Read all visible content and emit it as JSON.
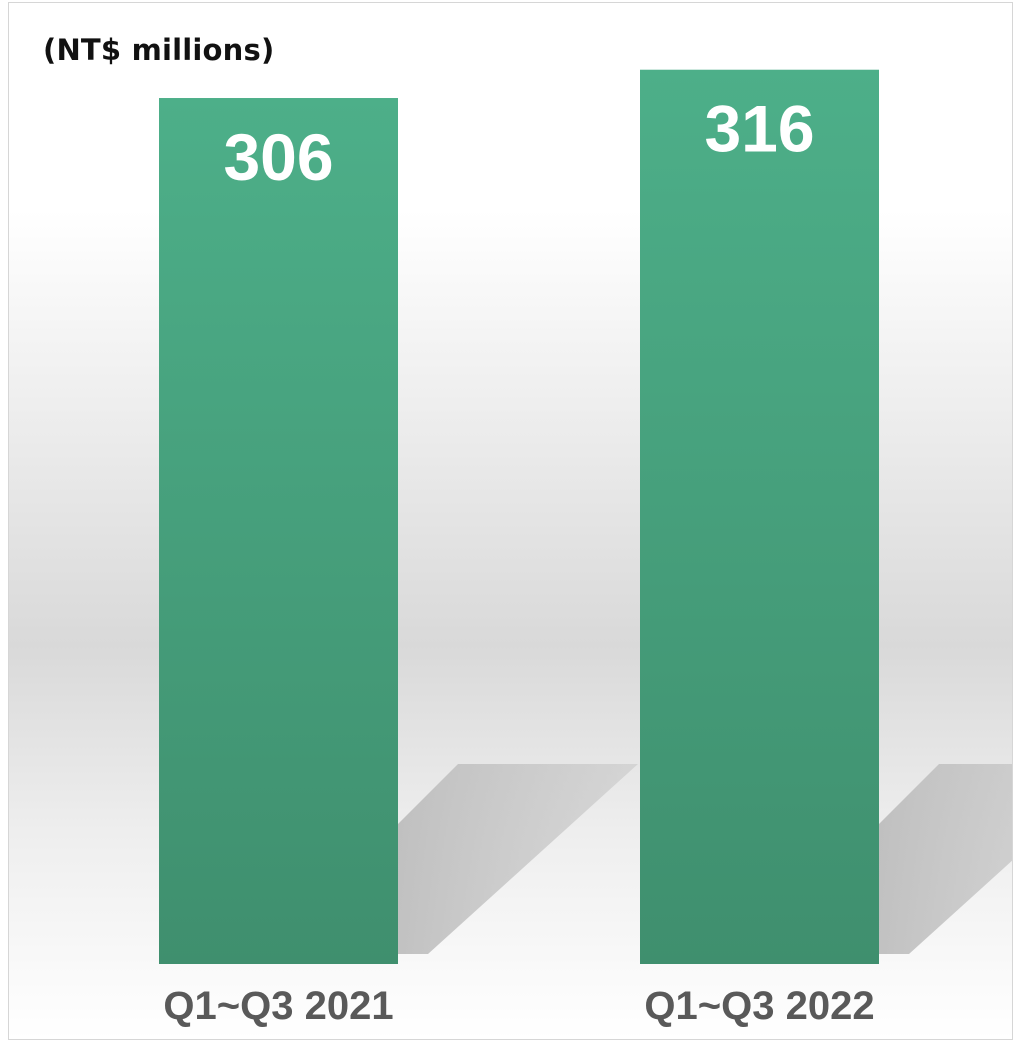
{
  "chart_data": {
    "type": "bar",
    "unit_label": "(NT$ millions)",
    "categories": [
      "Q1~Q3 2021",
      "Q1~Q3 2022"
    ],
    "values": [
      306,
      316
    ],
    "data_labels": [
      "306",
      "316"
    ],
    "title": "",
    "xlabel": "",
    "ylabel": "",
    "ylim": [
      0,
      328
    ],
    "grid": false,
    "legend": "none"
  },
  "colors": {
    "bar_top": "#4daf89",
    "bar_bottom": "#3f8f6e",
    "data_label": "#ffffff",
    "category_label": "#595959",
    "shadow": "#bdbdbd",
    "background_top": "#ffffff",
    "background_mid": "#d9d9d9"
  }
}
